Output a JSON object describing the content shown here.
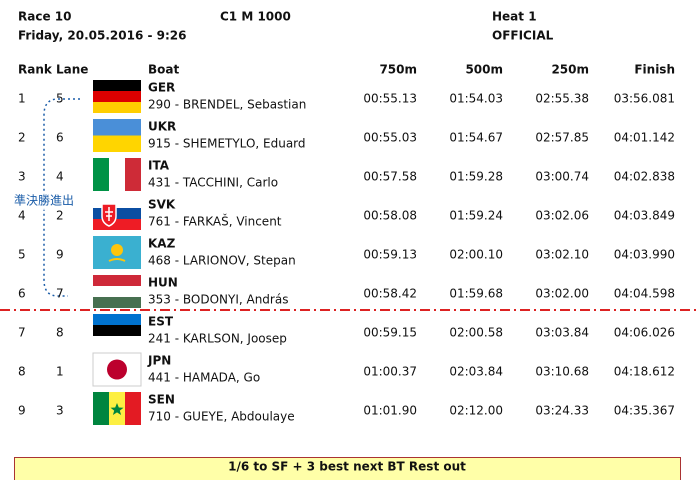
{
  "header": {
    "race": "Race 10",
    "event": "C1 M 1000",
    "heat": "Heat 1",
    "date": "Friday, 20.05.2016 - 9:26",
    "status": "OFFICIAL"
  },
  "table": {
    "columns": [
      "Rank",
      "Lane",
      "Boat",
      "750m",
      "500m",
      "250m",
      "Finish"
    ],
    "rows": [
      {
        "rank": "1",
        "lane": "5",
        "country": "GER",
        "athlete": "290 - BRENDEL, Sebastian",
        "t750": "00:55.13",
        "t500": "01:54.03",
        "t250": "02:55.38",
        "finish": "03:56.081"
      },
      {
        "rank": "2",
        "lane": "6",
        "country": "UKR",
        "athlete": "915 - SHEMETYLO, Eduard",
        "t750": "00:55.03",
        "t500": "01:54.67",
        "t250": "02:57.85",
        "finish": "04:01.142"
      },
      {
        "rank": "3",
        "lane": "4",
        "country": "ITA",
        "athlete": "431 - TACCHINI, Carlo",
        "t750": "00:57.58",
        "t500": "01:59.28",
        "t250": "03:00.74",
        "finish": "04:02.838"
      },
      {
        "rank": "4",
        "lane": "2",
        "country": "SVK",
        "athlete": "761 - FARKAŠ, Vincent",
        "t750": "00:58.08",
        "t500": "01:59.24",
        "t250": "03:02.06",
        "finish": "04:03.849"
      },
      {
        "rank": "5",
        "lane": "9",
        "country": "KAZ",
        "athlete": "468 - LARIONOV, Stepan",
        "t750": "00:59.13",
        "t500": "02:00.10",
        "t250": "03:02.10",
        "finish": "04:03.990"
      },
      {
        "rank": "6",
        "lane": "7",
        "country": "HUN",
        "athlete": "353 - BODONYI, András",
        "t750": "00:58.42",
        "t500": "01:59.68",
        "t250": "03:02.00",
        "finish": "04:04.598"
      },
      {
        "rank": "7",
        "lane": "8",
        "country": "EST",
        "athlete": "241 - KARLSON, Joosep",
        "t750": "00:59.15",
        "t500": "02:00.58",
        "t250": "03:03.84",
        "finish": "04:06.026"
      },
      {
        "rank": "8",
        "lane": "1",
        "country": "JPN",
        "athlete": "441 - HAMADA, Go",
        "t750": "01:00.37",
        "t500": "02:03.84",
        "t250": "03:10.68",
        "finish": "04:18.612"
      },
      {
        "rank": "9",
        "lane": "3",
        "country": "SEN",
        "athlete": "710 - GUEYE, Abdoulaye",
        "t750": "01:01.90",
        "t500": "02:12.00",
        "t250": "03:24.33",
        "finish": "04:35.367"
      }
    ]
  },
  "annotation": "準決勝進出",
  "footer": "1/6 to SF + 3 best next BT Rest out"
}
